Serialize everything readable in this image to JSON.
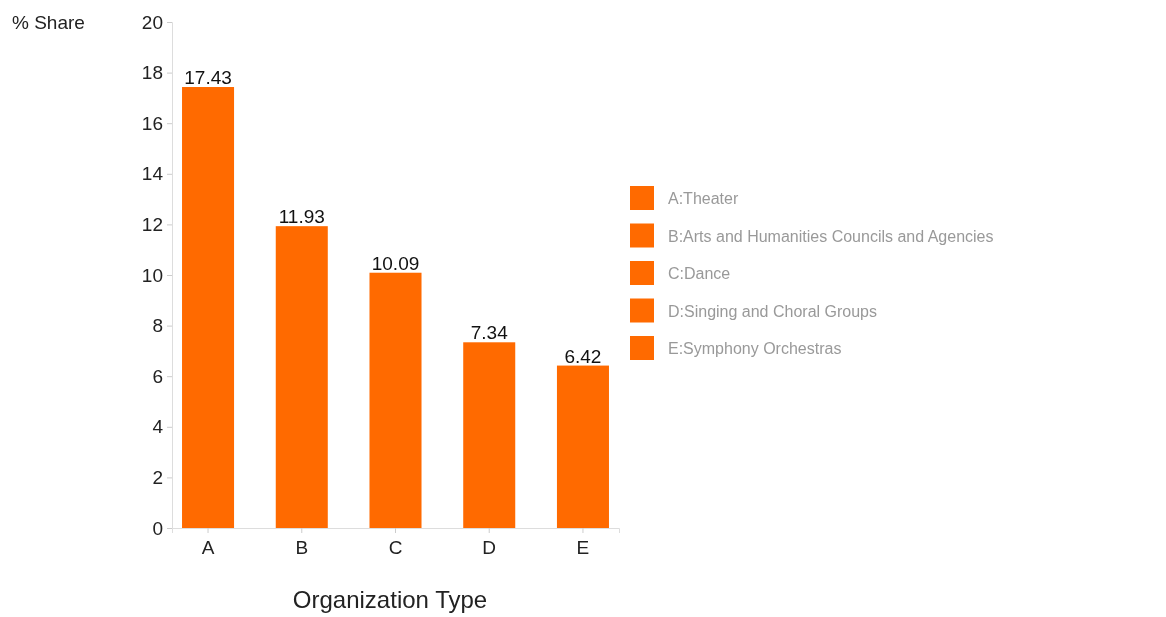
{
  "chart_data": {
    "type": "bar",
    "xlabel": "Organization Type",
    "ylabel": "% Share",
    "categories": [
      "A",
      "B",
      "C",
      "D",
      "E"
    ],
    "series": [
      {
        "name": "A:Theater",
        "color": "#ff6a00",
        "values": [
          17.43,
          null,
          null,
          null,
          null
        ]
      },
      {
        "name": "B:Arts and Humanities Councils and Agencies",
        "color": "#ff6a00",
        "values": [
          null,
          11.93,
          null,
          null,
          null
        ]
      },
      {
        "name": "C:Dance",
        "color": "#ff6a00",
        "values": [
          null,
          null,
          10.09,
          null,
          null
        ]
      },
      {
        "name": "D:Singing and Choral Groups",
        "color": "#ff6a00",
        "values": [
          null,
          null,
          null,
          7.34,
          null
        ]
      },
      {
        "name": "E:Symphony Orchestras",
        "color": "#ff6a00",
        "values": [
          null,
          null,
          null,
          null,
          6.42
        ]
      }
    ],
    "stacked": true,
    "data_labels": true,
    "legend": "right",
    "ylim": [
      0,
      20
    ],
    "yticks": [
      0,
      2,
      4,
      6,
      8,
      10,
      12,
      14,
      16,
      18,
      20
    ]
  }
}
